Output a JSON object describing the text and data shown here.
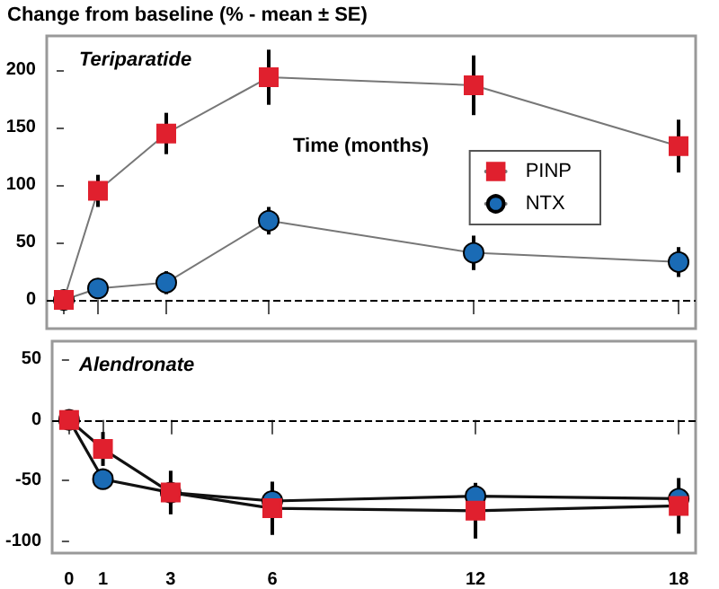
{
  "chart_data": [
    {
      "type": "line",
      "title": "Teriparatide",
      "ylabel": "Change from baseline (% - mean ± SE)",
      "annotations": [
        "Time (months)"
      ],
      "x": [
        0,
        1,
        3,
        6,
        12,
        18
      ],
      "xlim": [
        -0.5,
        18.5
      ],
      "xticks": [
        0,
        1,
        3,
        6,
        12,
        18
      ],
      "ylim": [
        -25,
        230
      ],
      "yticks": [
        0,
        50,
        100,
        150,
        200
      ],
      "tick_labels": "y",
      "grid": false,
      "legend": "right",
      "ref_lines": [
        {
          "axis": "y",
          "value": 0,
          "line_style": "dashed"
        }
      ],
      "series": [
        {
          "name": "PINP",
          "color": "#e0202e",
          "marker": "square",
          "values": [
            0,
            95,
            145,
            194,
            187,
            134
          ],
          "errors": [
            null,
            14,
            18,
            24,
            26,
            23
          ]
        },
        {
          "name": "NTX",
          "color": "#1a6bb5",
          "marker": "circle",
          "values": [
            0,
            10,
            15,
            69,
            41,
            33
          ],
          "errors": [
            null,
            8,
            10,
            12,
            15,
            13
          ]
        }
      ]
    },
    {
      "type": "line",
      "title": "Alendronate",
      "x": [
        0,
        1,
        3,
        6,
        12,
        18
      ],
      "xlim": [
        -0.5,
        18.5
      ],
      "xticks": [
        0,
        1,
        3,
        6,
        12,
        18
      ],
      "ylim": [
        -110,
        65
      ],
      "yticks": [
        -100,
        -50,
        0,
        50
      ],
      "grid": false,
      "legend": false,
      "ref_lines": [
        {
          "axis": "y",
          "value": 0,
          "line_style": "dashed"
        }
      ],
      "series": [
        {
          "color": "#e0202e",
          "marker": "square",
          "values": [
            0,
            -24,
            -60,
            -73,
            -75,
            -71
          ],
          "errors": [
            null,
            14,
            18,
            22,
            23,
            23
          ]
        },
        {
          "color": "#1a6bb5",
          "marker": "circle",
          "values": [
            0,
            -49,
            -60,
            -67,
            -63,
            -65
          ],
          "errors": [
            null,
            8,
            null,
            null,
            null,
            null
          ]
        }
      ]
    }
  ]
}
